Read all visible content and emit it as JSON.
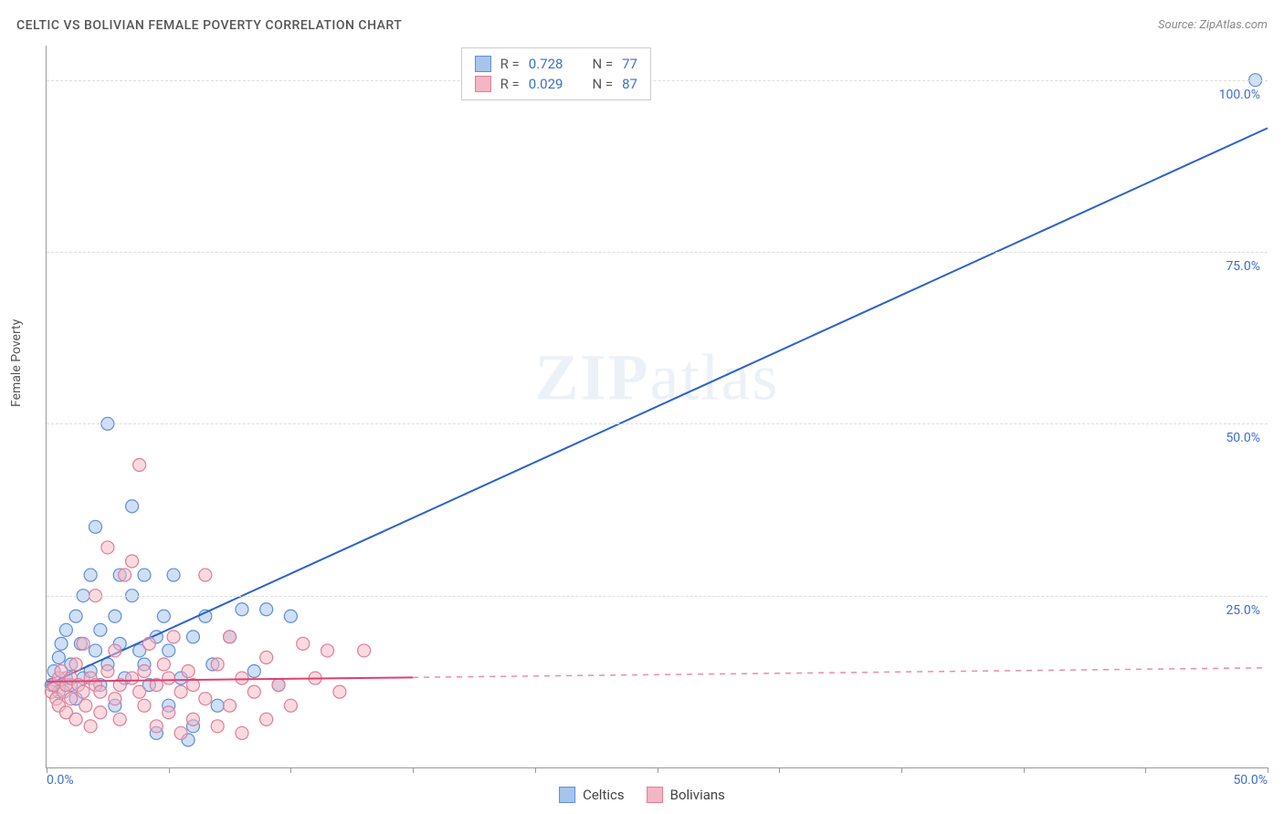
{
  "title": "CELTIC VS BOLIVIAN FEMALE POVERTY CORRELATION CHART",
  "source": "Source: ZipAtlas.com",
  "y_axis_label": "Female Poverty",
  "watermark": {
    "part1": "ZIP",
    "part2": "atlas"
  },
  "chart": {
    "type": "scatter",
    "background_color": "#ffffff",
    "grid_color": "#dddddd",
    "axis_color": "#999999",
    "text_color": "#555555",
    "value_color": "#3b6fc9",
    "xlim": [
      0,
      50
    ],
    "ylim": [
      0,
      105
    ],
    "x_ticks": [
      0,
      5,
      10,
      15,
      20,
      25,
      30,
      35,
      40,
      45,
      50
    ],
    "x_tick_labels": {
      "0": "0.0%",
      "50": "50.0%"
    },
    "y_ticks": [
      25,
      50,
      75,
      100
    ],
    "y_tick_labels": {
      "25": "25.0%",
      "50": "50.0%",
      "75": "75.0%",
      "100": "100.0%"
    },
    "series": [
      {
        "name": "Celtics",
        "marker_color": "#a7c4ec",
        "marker_border": "#5f8fd8",
        "line_color": "#2a62c9",
        "fill_opacity": 0.55,
        "marker_radius": 7,
        "r_value": "0.728",
        "n_value": "77",
        "trend": {
          "x1": 0,
          "y1": 12,
          "x2": 50,
          "y2": 93,
          "dash_after_x": 50
        },
        "points": [
          [
            0.2,
            12
          ],
          [
            0.3,
            14
          ],
          [
            0.5,
            11
          ],
          [
            0.5,
            16
          ],
          [
            0.6,
            18
          ],
          [
            0.8,
            13
          ],
          [
            0.8,
            20
          ],
          [
            1.0,
            12
          ],
          [
            1.0,
            15
          ],
          [
            1.2,
            22
          ],
          [
            1.2,
            10
          ],
          [
            1.4,
            18
          ],
          [
            1.5,
            25
          ],
          [
            1.5,
            13
          ],
          [
            1.8,
            14
          ],
          [
            1.8,
            28
          ],
          [
            2.0,
            17
          ],
          [
            2.0,
            35
          ],
          [
            2.2,
            12
          ],
          [
            2.2,
            20
          ],
          [
            2.5,
            50
          ],
          [
            2.5,
            15
          ],
          [
            2.8,
            22
          ],
          [
            2.8,
            9
          ],
          [
            3.0,
            18
          ],
          [
            3.0,
            28
          ],
          [
            3.2,
            13
          ],
          [
            3.5,
            25
          ],
          [
            3.5,
            38
          ],
          [
            3.8,
            17
          ],
          [
            4.0,
            28
          ],
          [
            4.0,
            15
          ],
          [
            4.2,
            12
          ],
          [
            4.5,
            19
          ],
          [
            4.5,
            5
          ],
          [
            4.8,
            22
          ],
          [
            5.0,
            17
          ],
          [
            5.0,
            9
          ],
          [
            5.2,
            28
          ],
          [
            5.5,
            13
          ],
          [
            5.8,
            4
          ],
          [
            6.0,
            19
          ],
          [
            6.0,
            6
          ],
          [
            6.5,
            22
          ],
          [
            6.8,
            15
          ],
          [
            7.0,
            9
          ],
          [
            7.5,
            19
          ],
          [
            8.0,
            23
          ],
          [
            8.5,
            14
          ],
          [
            9.0,
            23
          ],
          [
            9.5,
            12
          ],
          [
            10.0,
            22
          ],
          [
            49.5,
            100
          ]
        ]
      },
      {
        "name": "Bolivians",
        "marker_color": "#f3b6c4",
        "marker_border": "#e07d98",
        "line_color": "#e43d6f",
        "fill_opacity": 0.5,
        "marker_radius": 7,
        "r_value": "0.029",
        "n_value": "87",
        "trend": {
          "x1": 0,
          "y1": 12.5,
          "x2": 50,
          "y2": 14.5,
          "dash_after_x": 15
        },
        "points": [
          [
            0.2,
            11
          ],
          [
            0.3,
            12
          ],
          [
            0.4,
            10
          ],
          [
            0.5,
            13
          ],
          [
            0.5,
            9
          ],
          [
            0.6,
            14
          ],
          [
            0.7,
            11
          ],
          [
            0.8,
            12
          ],
          [
            0.8,
            8
          ],
          [
            1.0,
            13
          ],
          [
            1.0,
            10
          ],
          [
            1.2,
            15
          ],
          [
            1.2,
            7
          ],
          [
            1.3,
            12
          ],
          [
            1.5,
            11
          ],
          [
            1.5,
            18
          ],
          [
            1.6,
            9
          ],
          [
            1.8,
            13
          ],
          [
            1.8,
            6
          ],
          [
            2.0,
            12
          ],
          [
            2.0,
            25
          ],
          [
            2.2,
            11
          ],
          [
            2.2,
            8
          ],
          [
            2.5,
            14
          ],
          [
            2.5,
            32
          ],
          [
            2.8,
            10
          ],
          [
            2.8,
            17
          ],
          [
            3.0,
            12
          ],
          [
            3.0,
            7
          ],
          [
            3.2,
            28
          ],
          [
            3.5,
            13
          ],
          [
            3.5,
            30
          ],
          [
            3.8,
            11
          ],
          [
            3.8,
            44
          ],
          [
            4.0,
            14
          ],
          [
            4.0,
            9
          ],
          [
            4.2,
            18
          ],
          [
            4.5,
            12
          ],
          [
            4.5,
            6
          ],
          [
            4.8,
            15
          ],
          [
            5.0,
            13
          ],
          [
            5.0,
            8
          ],
          [
            5.2,
            19
          ],
          [
            5.5,
            11
          ],
          [
            5.5,
            5
          ],
          [
            5.8,
            14
          ],
          [
            6.0,
            12
          ],
          [
            6.0,
            7
          ],
          [
            6.5,
            28
          ],
          [
            6.5,
            10
          ],
          [
            7.0,
            15
          ],
          [
            7.0,
            6
          ],
          [
            7.5,
            19
          ],
          [
            7.5,
            9
          ],
          [
            8.0,
            13
          ],
          [
            8.0,
            5
          ],
          [
            8.5,
            11
          ],
          [
            9.0,
            16
          ],
          [
            9.0,
            7
          ],
          [
            9.5,
            12
          ],
          [
            10.0,
            9
          ],
          [
            10.5,
            18
          ],
          [
            11.0,
            13
          ],
          [
            11.5,
            17
          ],
          [
            12.0,
            11
          ],
          [
            13.0,
            17
          ]
        ]
      }
    ]
  },
  "top_legend": {
    "rows": [
      {
        "swatch_fill": "#a7c4ec",
        "swatch_border": "#5f8fd8",
        "r_label": "R =",
        "r_value": "0.728",
        "n_label": "N =",
        "n_value": "77"
      },
      {
        "swatch_fill": "#f3b6c4",
        "swatch_border": "#e07d98",
        "r_label": "R =",
        "r_value": "0.029",
        "n_label": "N =",
        "n_value": "87"
      }
    ]
  },
  "bottom_legend": {
    "items": [
      {
        "swatch_fill": "#a7c4ec",
        "swatch_border": "#5f8fd8",
        "label": "Celtics"
      },
      {
        "swatch_fill": "#f3b6c4",
        "swatch_border": "#e07d98",
        "label": "Bolivians"
      }
    ]
  }
}
